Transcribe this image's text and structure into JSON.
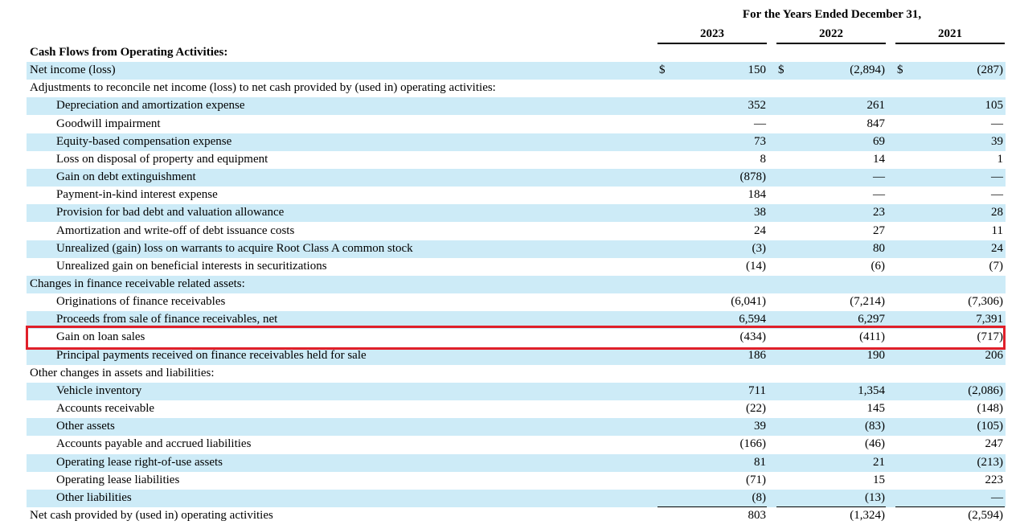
{
  "header": {
    "period": "For the Years Ended December 31,",
    "years": [
      "2023",
      "2022",
      "2021"
    ]
  },
  "rows": [
    {
      "label": "Cash Flows from Operating Activities:",
      "bold": true,
      "indent": 0,
      "shade": false,
      "values": [
        "",
        "",
        ""
      ],
      "currency": false
    },
    {
      "label": "Net income (loss)",
      "indent": 0,
      "shade": true,
      "values": [
        "150",
        "(2,894)",
        "(287)"
      ],
      "currency": true
    },
    {
      "label": "Adjustments to reconcile net income (loss) to net cash provided by (used in) operating activities:",
      "indent": 0,
      "shade": false,
      "values": [
        "",
        "",
        ""
      ]
    },
    {
      "label": "Depreciation and amortization expense",
      "indent": 1,
      "shade": true,
      "values": [
        "352",
        "261",
        "105"
      ]
    },
    {
      "label": "Goodwill impairment",
      "indent": 1,
      "shade": false,
      "values": [
        "—",
        "847",
        "—"
      ]
    },
    {
      "label": "Equity-based compensation expense",
      "indent": 1,
      "shade": true,
      "values": [
        "73",
        "69",
        "39"
      ]
    },
    {
      "label": "Loss on disposal of property and equipment",
      "indent": 1,
      "shade": false,
      "values": [
        "8",
        "14",
        "1"
      ]
    },
    {
      "label": "Gain on debt extinguishment",
      "indent": 1,
      "shade": true,
      "values": [
        "(878)",
        "—",
        "—"
      ]
    },
    {
      "label": "Payment-in-kind interest expense",
      "indent": 1,
      "shade": false,
      "values": [
        "184",
        "—",
        "—"
      ]
    },
    {
      "label": "Provision for bad debt and valuation allowance",
      "indent": 1,
      "shade": true,
      "values": [
        "38",
        "23",
        "28"
      ]
    },
    {
      "label": "Amortization and write-off of debt issuance costs",
      "indent": 1,
      "shade": false,
      "values": [
        "24",
        "27",
        "11"
      ]
    },
    {
      "label": "Unrealized (gain) loss on warrants to acquire Root Class A common stock",
      "indent": 1,
      "shade": true,
      "values": [
        "(3)",
        "80",
        "24"
      ]
    },
    {
      "label": "Unrealized gain on beneficial interests in securitizations",
      "indent": 1,
      "shade": false,
      "values": [
        "(14)",
        "(6)",
        "(7)"
      ]
    },
    {
      "label": "Changes in finance receivable related assets:",
      "indent": 0,
      "shade": true,
      "values": [
        "",
        "",
        ""
      ]
    },
    {
      "label": "Originations of finance receivables",
      "indent": 1,
      "shade": false,
      "values": [
        "(6,041)",
        "(7,214)",
        "(7,306)"
      ]
    },
    {
      "label": "Proceeds from sale of finance receivables, net",
      "indent": 1,
      "shade": true,
      "values": [
        "6,594",
        "6,297",
        "7,391"
      ]
    },
    {
      "label": "Gain on loan sales",
      "indent": 1,
      "shade": false,
      "values": [
        "(434)",
        "(411)",
        "(717)"
      ]
    },
    {
      "label": "Principal payments received on finance receivables held for sale",
      "indent": 1,
      "shade": true,
      "values": [
        "186",
        "190",
        "206"
      ]
    },
    {
      "label": "Other changes in assets and liabilities:",
      "indent": 0,
      "shade": false,
      "values": [
        "",
        "",
        ""
      ]
    },
    {
      "label": "Vehicle inventory",
      "indent": 1,
      "shade": true,
      "values": [
        "711",
        "1,354",
        "(2,086)"
      ]
    },
    {
      "label": "Accounts receivable",
      "indent": 1,
      "shade": false,
      "values": [
        "(22)",
        "145",
        "(148)"
      ]
    },
    {
      "label": "Other assets",
      "indent": 1,
      "shade": true,
      "values": [
        "39",
        "(83)",
        "(105)"
      ]
    },
    {
      "label": "Accounts payable and accrued liabilities",
      "indent": 1,
      "shade": false,
      "values": [
        "(166)",
        "(46)",
        "247"
      ]
    },
    {
      "label": "Operating lease right-of-use assets",
      "indent": 1,
      "shade": true,
      "values": [
        "81",
        "21",
        "(213)"
      ]
    },
    {
      "label": "Operating lease liabilities",
      "indent": 1,
      "shade": false,
      "values": [
        "(71)",
        "15",
        "223"
      ]
    },
    {
      "label": "Other liabilities",
      "indent": 1,
      "shade": true,
      "values": [
        "(8)",
        "(13)",
        "—"
      ]
    },
    {
      "label": "Net cash provided by (used in) operating activities",
      "indent": 0,
      "shade": false,
      "values": [
        "803",
        "(1,324)",
        "(2,594)"
      ]
    }
  ],
  "currency_symbol": "$",
  "highlight_color": "#e0202a",
  "shade_color": "#cdebf7"
}
